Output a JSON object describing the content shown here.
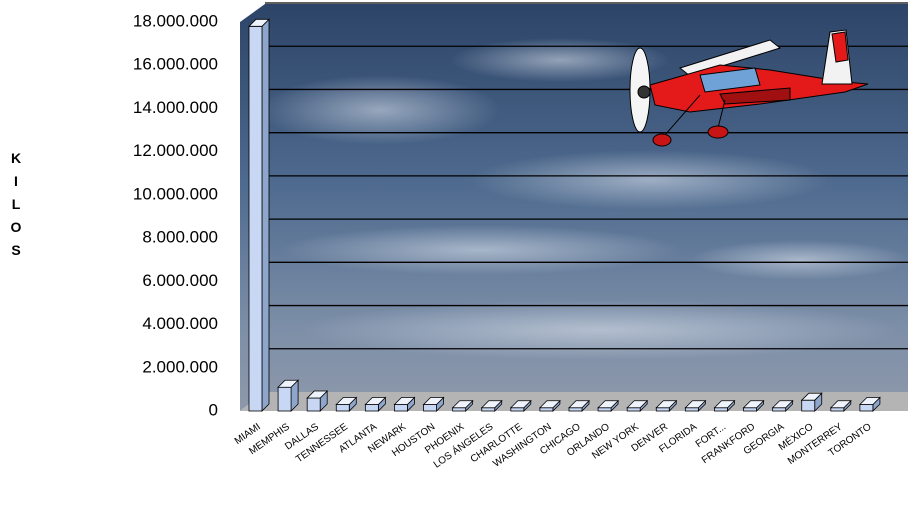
{
  "chart_data": {
    "type": "bar3d",
    "y_label": "KILOS",
    "categories": [
      "MIAMI",
      "MEMPHIS",
      "DALLAS",
      "TENNESSEE",
      "ATLANTA",
      "NEWARK",
      "HOUSTON",
      "PHOENIX",
      "LOS ÁNGELES",
      "CHARLOTTE",
      "WASHINGTON",
      "CHICAGO",
      "ORLANDO",
      "NEW YORK",
      "DENVER",
      "FLORIDA",
      "FORT...",
      "FRANKFORD",
      "GEORGIA",
      "MÉXICO",
      "MONTERREY",
      "TORONTO"
    ],
    "values": [
      17800000,
      1100000,
      600000,
      300000,
      300000,
      300000,
      300000,
      150000,
      150000,
      150000,
      150000,
      150000,
      150000,
      150000,
      150000,
      150000,
      150000,
      150000,
      150000,
      500000,
      150000,
      300000
    ],
    "color": "#c8d8f4",
    "ylim": [
      0,
      18000000
    ],
    "yticks": [
      0,
      {
        "value": 2000000,
        "label": "2.000.000"
      },
      {
        "value": 4000000,
        "label": "4.000.000"
      },
      {
        "value": 6000000,
        "label": "6.000.000"
      },
      {
        "value": 8000000,
        "label": "8.000.000"
      },
      {
        "value": 10000000,
        "label": "10.000.000"
      },
      {
        "value": 12000000,
        "label": "12.000.000"
      },
      {
        "value": 14000000,
        "label": "14.000.000"
      },
      {
        "value": 16000000,
        "label": "16.000.000"
      },
      {
        "value": 18000000,
        "label": "18.000.000"
      }
    ],
    "grid": true
  }
}
